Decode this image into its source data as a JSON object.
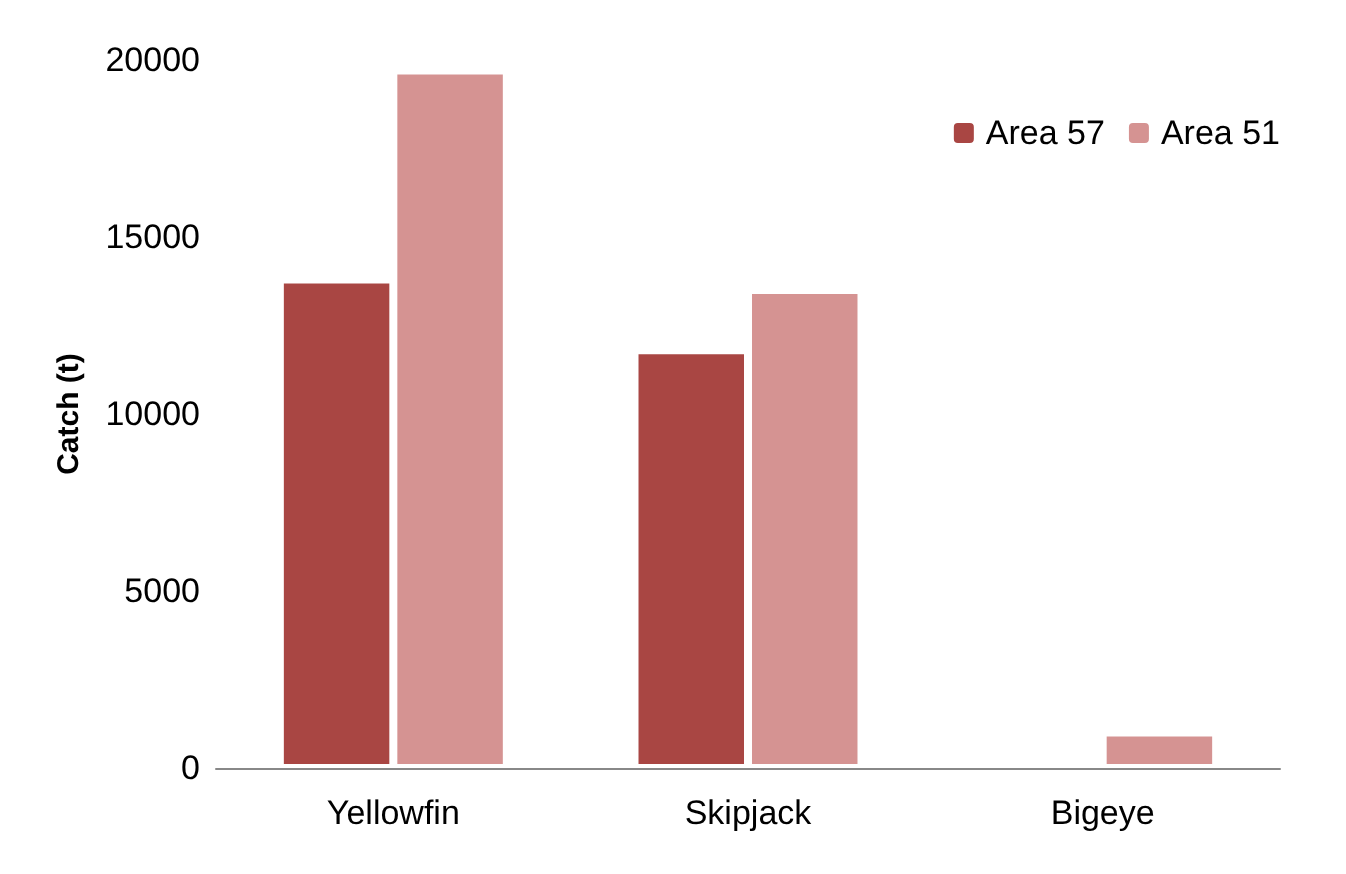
{
  "chart_data": {
    "type": "bar",
    "ylabel": "Catch (t)",
    "categories": [
      "Yellowfin",
      "Skipjack",
      "Bigeye"
    ],
    "series": [
      {
        "name": "Area 57",
        "color": "#a94643",
        "values": [
          13800,
          11800,
          null
        ]
      },
      {
        "name": "Area 51",
        "color": "#d59392",
        "values": [
          19700,
          13500,
          1000
        ]
      }
    ],
    "ylim": [
      0,
      20000
    ],
    "yticks": [
      0,
      5000,
      10000,
      15000,
      20000
    ],
    "grid": false,
    "legend": "top right"
  }
}
